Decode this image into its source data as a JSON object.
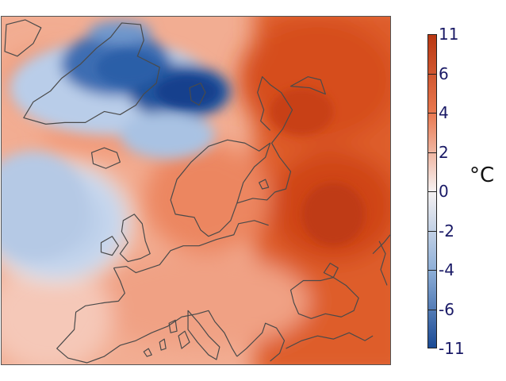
{
  "map": {
    "region": "Europe and North Atlantic",
    "variable": "temperature anomaly",
    "coastline_color": "#4a4a4a"
  },
  "colorbar": {
    "min": -11,
    "max": 11,
    "unit": "°C",
    "ticks": [
      "11",
      "6",
      "4",
      "2",
      "0",
      "-2",
      "-4",
      "-6",
      "-11"
    ],
    "colors": {
      "high": "#b93712",
      "mid_high": "#e9784f",
      "neutral": "#f6f2f2",
      "mid_low": "#8fb0d8",
      "low": "#1a4a95"
    }
  }
}
